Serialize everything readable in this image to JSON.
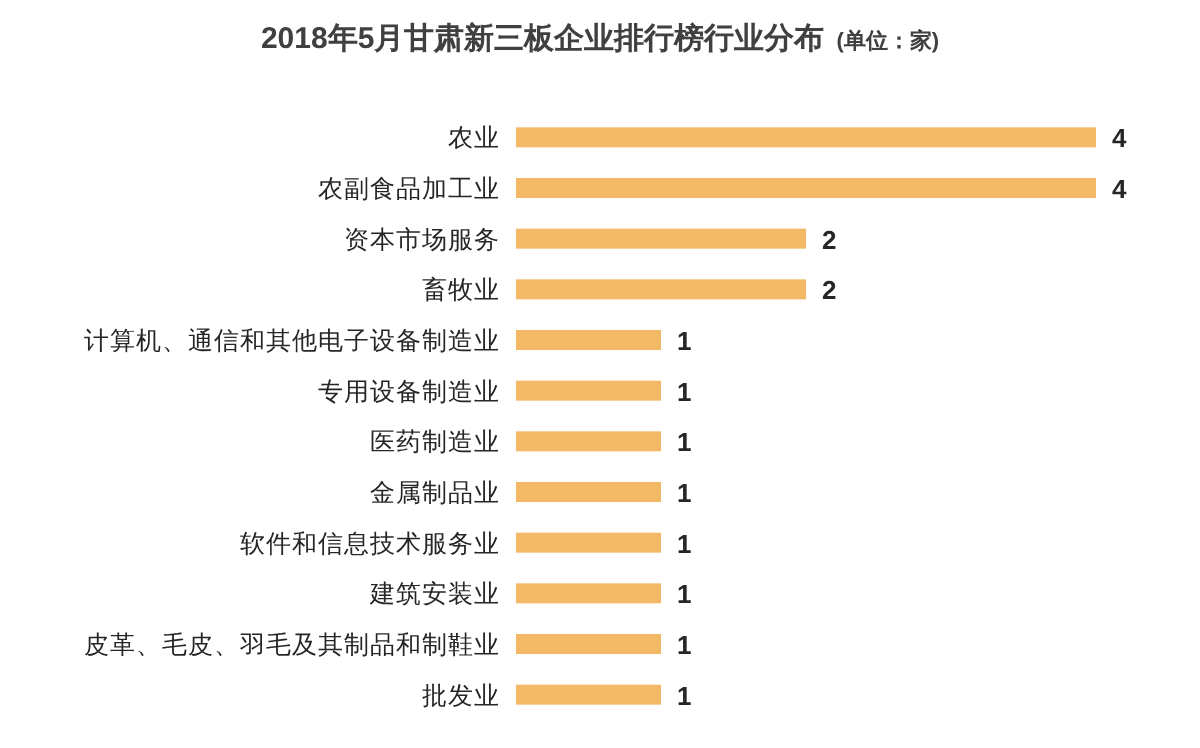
{
  "chart_data": {
    "type": "bar",
    "orientation": "horizontal",
    "title": "2018年5月甘肃新三板企业排行榜行业分布",
    "subtitle": "(单位：家)",
    "categories": [
      "农业",
      "农副食品加工业",
      "资本市场服务",
      "畜牧业",
      "计算机、通信和其他电子设备制造业",
      "专用设备制造业",
      "医药制造业",
      "金属制品业",
      "软件和信息技术服务业",
      "建筑安装业",
      "皮革、毛皮、羽毛及其制品和制鞋业",
      "批发业"
    ],
    "values": [
      4,
      4,
      2,
      2,
      1,
      1,
      1,
      1,
      1,
      1,
      1,
      1
    ],
    "color": "#f4b966",
    "data_labels": true
  }
}
